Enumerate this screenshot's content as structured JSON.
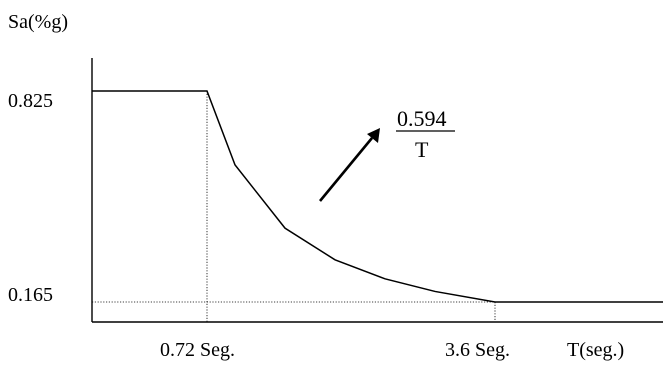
{
  "chart_data": {
    "type": "line",
    "ylabel": "Sa(%g)",
    "xlabel": "T(seg.)",
    "y_ticks": [
      "0.825",
      "0.165"
    ],
    "x_ticks": [
      "0.72 Seg.",
      "3.6 Seg."
    ],
    "annotation": {
      "numerator": "0.594",
      "denominator": "T"
    },
    "series": [
      {
        "points": [
          {
            "x": 0,
            "y": 0.825
          },
          {
            "x": 0.72,
            "y": 0.825
          },
          {
            "x": 1.0,
            "y": 0.594
          },
          {
            "x": 1.5,
            "y": 0.396
          },
          {
            "x": 2.0,
            "y": 0.297
          },
          {
            "x": 2.5,
            "y": 0.2376
          },
          {
            "x": 3.0,
            "y": 0.198
          },
          {
            "x": 3.6,
            "y": 0.165
          },
          {
            "x": 5.2,
            "y": 0.165
          }
        ]
      }
    ],
    "grid": false
  }
}
